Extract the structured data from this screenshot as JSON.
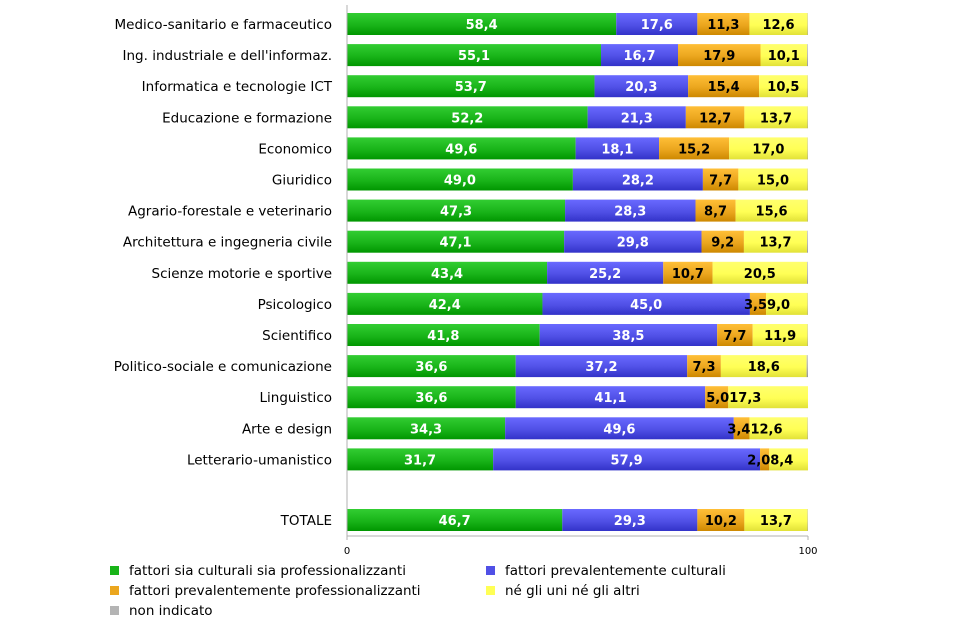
{
  "chart_data": {
    "type": "bar",
    "orientation": "horizontal",
    "stacked": true,
    "xlim": [
      0,
      100
    ],
    "x_ticks": [
      "0",
      "100"
    ],
    "categories": [
      "Medico-sanitario e farmaceutico",
      "Ing. industriale e dell'informaz.",
      "Informatica e tecnologie ICT",
      "Educazione e formazione",
      "Economico",
      "Giuridico",
      "Agrario-forestale e veterinario",
      "Architettura e ingegneria civile",
      "Scienze motorie e sportive",
      "Psicologico",
      "Scientifico",
      "Politico-sociale e comunicazione",
      "Linguistico",
      "Arte e design",
      "Letterario-umanistico",
      "TOTALE"
    ],
    "series": [
      {
        "name": "fattori sia culturali sia professionalizzanti",
        "color": "#19b419",
        "values": [
          58.4,
          55.1,
          53.7,
          52.2,
          49.6,
          49.0,
          47.3,
          47.1,
          43.4,
          42.4,
          41.8,
          36.6,
          36.6,
          34.3,
          31.7,
          46.7
        ],
        "labels": [
          "58,4",
          "55,1",
          "53,7",
          "52,2",
          "49,6",
          "49,0",
          "47,3",
          "47,1",
          "43,4",
          "42,4",
          "41,8",
          "36,6",
          "36,6",
          "34,3",
          "31,7",
          "46,7"
        ]
      },
      {
        "name": "fattori prevalentemente culturali",
        "color": "#5050e6",
        "values": [
          17.6,
          16.7,
          20.3,
          21.3,
          18.1,
          28.2,
          28.3,
          29.8,
          25.2,
          45.0,
          38.5,
          37.2,
          41.1,
          49.6,
          57.9,
          29.3
        ],
        "labels": [
          "17,6",
          "16,7",
          "20,3",
          "21,3",
          "18,1",
          "28,2",
          "28,3",
          "29,8",
          "25,2",
          "45,0",
          "38,5",
          "37,2",
          "41,1",
          "49,6",
          "57,9",
          "29,3"
        ]
      },
      {
        "name": "fattori prevalentemente professionalizzanti",
        "color": "#eba61e",
        "values": [
          11.3,
          17.9,
          15.4,
          12.7,
          15.2,
          7.7,
          8.7,
          9.2,
          10.7,
          3.5,
          7.7,
          7.3,
          5.0,
          3.4,
          2.0,
          10.2
        ],
        "labels": [
          "11,3",
          "17,9",
          "15,4",
          "12,7",
          "15,2",
          "7,7",
          "8,7",
          "9,2",
          "10,7",
          "3,5",
          "7,7",
          "7,3",
          "5,0",
          "3,4",
          "2,0",
          "10,2"
        ]
      },
      {
        "name": "né gli uni né gli altri",
        "color": "#ffff55",
        "values": [
          12.6,
          10.1,
          10.5,
          13.7,
          17.0,
          15.0,
          15.6,
          13.7,
          20.5,
          9.0,
          11.9,
          18.6,
          17.3,
          12.6,
          8.4,
          13.7
        ],
        "labels": [
          "12,6",
          "10,1",
          "10,5",
          "13,7",
          "17,0",
          "15,0",
          "15,6",
          "13,7",
          "20,5",
          "9,0",
          "11,9",
          "18,6",
          "17,3",
          "12,6",
          "8,4",
          "13,7"
        ]
      },
      {
        "name": "non indicato",
        "color": "#b4b4b4",
        "values": [
          0.1,
          0.2,
          0.1,
          0.1,
          0.1,
          0.1,
          0.1,
          0.2,
          0.2,
          0.1,
          0.1,
          0.3,
          0.0,
          0.1,
          0.0,
          0.1
        ],
        "labels": []
      }
    ],
    "legend_position": "bottom"
  }
}
